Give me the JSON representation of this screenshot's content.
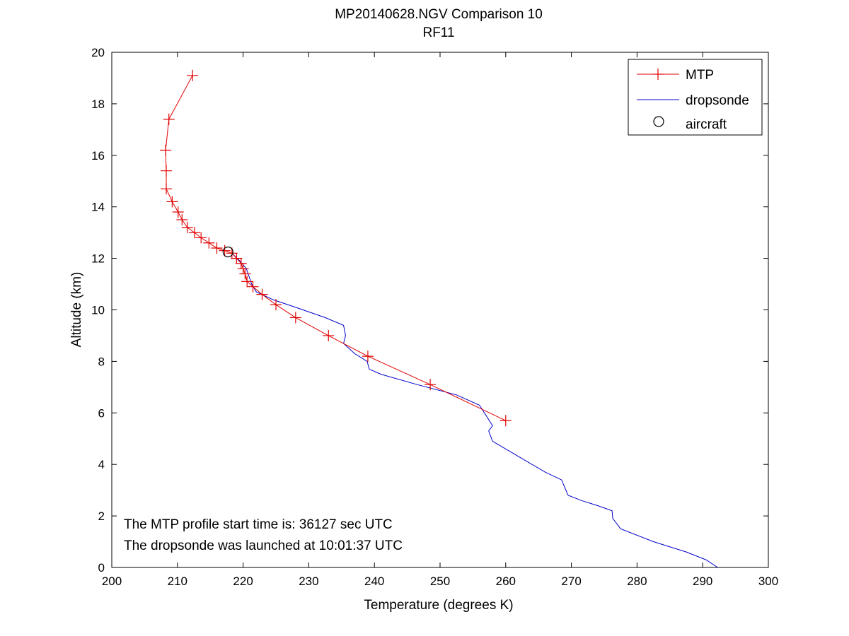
{
  "chart_data": {
    "type": "line",
    "title": "MP20140628.NGV Comparison 10",
    "subtitle": "RF11",
    "xlabel": "Temperature (degrees K)",
    "ylabel": "Altitude (km)",
    "xlim": [
      200,
      300
    ],
    "ylim": [
      0,
      20
    ],
    "xticks": [
      200,
      210,
      220,
      230,
      240,
      250,
      260,
      270,
      280,
      290,
      300
    ],
    "yticks": [
      0,
      2,
      4,
      6,
      8,
      10,
      12,
      14,
      16,
      18,
      20
    ],
    "grid": false,
    "legend_position": "top-right",
    "colors": {
      "mtp": "#e00000",
      "dropsonde": "#0000cc",
      "aircraft": "#000000"
    },
    "series": [
      {
        "name": "MTP",
        "marker": "plus",
        "points": [
          [
            212.3,
            19.1
          ],
          [
            208.7,
            17.4
          ],
          [
            208.2,
            16.2
          ],
          [
            208.3,
            15.4
          ],
          [
            208.3,
            14.7
          ],
          [
            209.2,
            14.2
          ],
          [
            210.1,
            13.8
          ],
          [
            210.7,
            13.5
          ],
          [
            211.5,
            13.2
          ],
          [
            212.6,
            13.0
          ],
          [
            213.6,
            12.8
          ],
          [
            214.8,
            12.6
          ],
          [
            216.0,
            12.4
          ],
          [
            217.2,
            12.3
          ],
          [
            218.3,
            12.2
          ],
          [
            219.0,
            12.0
          ],
          [
            219.7,
            11.8
          ],
          [
            220.0,
            11.6
          ],
          [
            220.3,
            11.4
          ],
          [
            220.6,
            11.1
          ],
          [
            221.5,
            10.9
          ],
          [
            222.9,
            10.6
          ],
          [
            225.0,
            10.2
          ],
          [
            228.0,
            9.7
          ],
          [
            233.0,
            9.0
          ],
          [
            239.0,
            8.2
          ],
          [
            248.5,
            7.1
          ],
          [
            260.0,
            5.7
          ]
        ]
      },
      {
        "name": "dropsonde",
        "marker": "none",
        "points": [
          [
            292.3,
            0.0
          ],
          [
            290.5,
            0.3
          ],
          [
            287.5,
            0.6
          ],
          [
            282.5,
            1.0
          ],
          [
            277.5,
            1.5
          ],
          [
            276.3,
            1.9
          ],
          [
            276.2,
            2.2
          ],
          [
            274.0,
            2.4
          ],
          [
            271.5,
            2.6
          ],
          [
            269.5,
            2.8
          ],
          [
            269.0,
            3.1
          ],
          [
            268.5,
            3.4
          ],
          [
            266.0,
            3.7
          ],
          [
            262.0,
            4.3
          ],
          [
            258.0,
            4.9
          ],
          [
            257.4,
            5.3
          ],
          [
            258.0,
            5.5
          ],
          [
            257.0,
            5.9
          ],
          [
            256.0,
            6.3
          ],
          [
            252.5,
            6.7
          ],
          [
            246.5,
            7.1
          ],
          [
            241.0,
            7.5
          ],
          [
            239.2,
            7.7
          ],
          [
            238.9,
            8.0
          ],
          [
            237.0,
            8.3
          ],
          [
            235.3,
            8.7
          ],
          [
            235.6,
            9.0
          ],
          [
            235.3,
            9.4
          ],
          [
            232.5,
            9.7
          ],
          [
            228.0,
            10.1
          ],
          [
            224.5,
            10.4
          ],
          [
            222.0,
            10.7
          ],
          [
            221.3,
            11.0
          ],
          [
            220.9,
            11.3
          ],
          [
            220.5,
            11.6
          ],
          [
            219.5,
            11.9
          ],
          [
            218.3,
            12.2
          ]
        ]
      },
      {
        "name": "aircraft",
        "marker": "circle",
        "points": [
          [
            217.7,
            12.25
          ]
        ]
      }
    ],
    "annotations": [
      "The MTP profile start time is: 36127 sec UTC",
      "The dropsonde was launched at 10:01:37 UTC"
    ]
  }
}
